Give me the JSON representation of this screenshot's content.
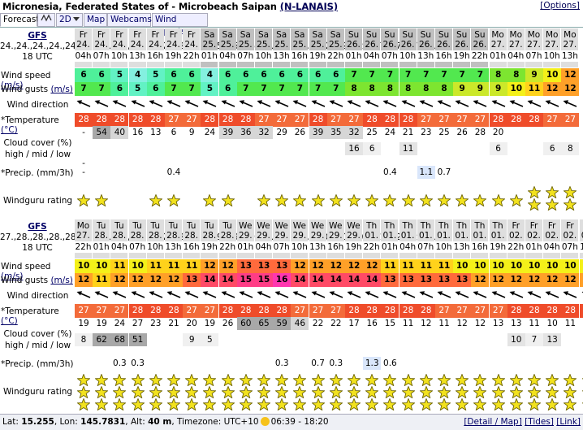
{
  "header": {
    "title": "Micronesia, Federated States of - Microbeach Saipan",
    "code": "(N-LANAIS)",
    "options": "[Options]"
  },
  "tabs": [
    "Forecast",
    "2D",
    "Map",
    "Webcams",
    "Wind reports"
  ],
  "blocks": [
    {
      "model": "GFS",
      "date": [
        "24.",
        "24.",
        "24.",
        "24.",
        "24.",
        "24.",
        "24.",
        "25.",
        "25.",
        "25.",
        "25.",
        "25.",
        "25.",
        "25.",
        "25.",
        "26.",
        "26.",
        "26.",
        "26.",
        "26.",
        "26.",
        "26.",
        "26.",
        "27.",
        "27.",
        "27.",
        "27.",
        "27."
      ],
      "utc": "18 UTC",
      "day": [
        "Fr",
        "Fr",
        "Fr",
        "Fr",
        "Fr",
        "Fr",
        "Fr",
        "Sa",
        "Sa",
        "Sa",
        "Sa",
        "Sa",
        "Sa",
        "Sa",
        "Sa",
        "Su",
        "Su",
        "Su",
        "Su",
        "Su",
        "Su",
        "Su",
        "Su",
        "Mo",
        "Mo",
        "Mo",
        "Mo",
        "Mo"
      ],
      "hour": [
        "04h",
        "07h",
        "10h",
        "13h",
        "16h",
        "19h",
        "22h",
        "01h",
        "04h",
        "07h",
        "10h",
        "13h",
        "16h",
        "19h",
        "22h",
        "01h",
        "04h",
        "07h",
        "10h",
        "13h",
        "16h",
        "19h",
        "22h",
        "01h",
        "04h",
        "07h",
        "10h",
        "13h"
      ],
      "wind": [
        6,
        6,
        5,
        4,
        5,
        6,
        6,
        4,
        6,
        6,
        6,
        6,
        6,
        6,
        6,
        7,
        7,
        7,
        7,
        7,
        7,
        7,
        7,
        8,
        8,
        9,
        10,
        12
      ],
      "gusts": [
        7,
        7,
        6,
        5,
        6,
        7,
        7,
        5,
        6,
        7,
        7,
        7,
        7,
        7,
        7,
        8,
        8,
        8,
        8,
        8,
        8,
        9,
        9,
        9,
        10,
        11,
        12,
        12
      ],
      "temp": [
        28,
        28,
        28,
        28,
        28,
        27,
        27,
        28,
        28,
        28,
        27,
        27,
        27,
        28,
        27,
        27,
        28,
        28,
        28,
        27,
        27,
        27,
        27,
        28,
        28,
        28,
        27,
        27
      ],
      "cloud_high": [
        "-",
        "54",
        "40",
        "16",
        "13",
        "6",
        "9",
        "24",
        "39",
        "36",
        "32",
        "29",
        "26",
        "39",
        "35",
        "32",
        "25",
        "24",
        "21",
        "23",
        "25",
        "26",
        "28",
        "20",
        "",
        "",
        "",
        ""
      ],
      "cloud_mid": [
        "",
        "",
        "",
        "",
        "",
        "",
        "",
        "",
        "",
        "",
        "",
        "",
        "",
        "",
        "",
        "16",
        "6",
        "",
        "11",
        "",
        "",
        "",
        "",
        "6",
        "",
        "",
        "6",
        "8"
      ],
      "cloud_low": [
        "-",
        "",
        "",
        "",
        "",
        "",
        "",
        "",
        "",
        "",
        "",
        "",
        "",
        "",
        "",
        "",
        "",
        "",
        "",
        "",
        "",
        "",
        "",
        "",
        "",
        "",
        "",
        ""
      ],
      "precip": [
        "-",
        "",
        "",
        "",
        "",
        "0.4",
        "",
        "",
        "",
        "",
        "",
        "",
        "",
        "",
        "",
        "",
        "",
        "0.4",
        "",
        "1.1",
        "0.7",
        "",
        "",
        "",
        "",
        "",
        "",
        ""
      ],
      "stars": [
        1,
        1,
        0,
        0,
        1,
        1,
        0,
        1,
        1,
        0,
        1,
        1,
        1,
        1,
        1,
        1,
        1,
        1,
        1,
        1,
        1,
        1,
        1,
        1,
        1,
        2,
        2,
        2
      ]
    },
    {
      "model": "GFS",
      "date": [
        "27.",
        "28.",
        "28.",
        "28.",
        "28.",
        "28.",
        "28.",
        "28.",
        "28.",
        "29.",
        "29.",
        "29.",
        "29.",
        "29.",
        "29.",
        "29.",
        "01.",
        "01.",
        "01.",
        "01.",
        "01.",
        "01.",
        "01.",
        "01.",
        "02.",
        "02.",
        "02.",
        "02.",
        "02."
      ],
      "utc": "18 UTC",
      "day": [
        "Mo",
        "Tu",
        "Tu",
        "Tu",
        "Tu",
        "Tu",
        "Tu",
        "Tu",
        "Tu",
        "We",
        "We",
        "We",
        "We",
        "We",
        "We",
        "We",
        "Th",
        "Th",
        "Th",
        "Th",
        "Th",
        "Th",
        "Th",
        "Th",
        "Fr",
        "Fr",
        "Fr",
        "Fr",
        "Fr"
      ],
      "hour": [
        "22h",
        "01h",
        "04h",
        "07h",
        "10h",
        "13h",
        "16h",
        "19h",
        "22h",
        "01h",
        "04h",
        "07h",
        "10h",
        "13h",
        "16h",
        "19h",
        "22h",
        "01h",
        "04h",
        "07h",
        "10h",
        "13h",
        "16h",
        "19h",
        "22h",
        "01h",
        "04h",
        "07h",
        "10h"
      ],
      "wind": [
        10,
        10,
        11,
        10,
        11,
        11,
        11,
        12,
        12,
        13,
        13,
        13,
        12,
        12,
        12,
        12,
        12,
        11,
        11,
        11,
        11,
        10,
        10,
        10,
        10,
        10,
        10,
        10,
        10
      ],
      "gusts": [
        12,
        11,
        12,
        12,
        12,
        12,
        13,
        14,
        14,
        15,
        15,
        16,
        14,
        14,
        14,
        14,
        14,
        13,
        13,
        13,
        13,
        13,
        12,
        12,
        12,
        12,
        12,
        12,
        12
      ],
      "temp": [
        27,
        27,
        27,
        28,
        28,
        28,
        27,
        27,
        28,
        28,
        28,
        28,
        27,
        27,
        27,
        28,
        28,
        28,
        28,
        28,
        27,
        27,
        27,
        27,
        28,
        28,
        28,
        28,
        28
      ],
      "cloud_high": [
        "19",
        "19",
        "24",
        "27",
        "23",
        "21",
        "20",
        "19",
        "26",
        "60",
        "65",
        "59",
        "46",
        "22",
        "22",
        "17",
        "16",
        "15",
        "11",
        "12",
        "11",
        "12",
        "12",
        "13",
        "13",
        "11",
        "10",
        "11",
        "13"
      ],
      "cloud_mid": [
        "8",
        "62",
        "68",
        "51",
        "",
        "",
        "9",
        "5",
        "",
        "",
        "",
        "",
        "",
        "",
        "",
        "",
        "",
        "",
        "",
        "",
        "",
        "",
        "",
        "",
        "10",
        "7",
        "13",
        "",
        ""
      ],
      "cloud_low": [
        "",
        "",
        "",
        "",
        "",
        "",
        "",
        "",
        "",
        "",
        "",
        "",
        "",
        "",
        "",
        "",
        "",
        "",
        "",
        "",
        "",
        "",
        "",
        "",
        "",
        "",
        "",
        "",
        ""
      ],
      "precip": [
        "",
        "",
        "0.3",
        "0.3",
        "",
        "",
        "",
        "",
        "",
        "",
        "",
        "0.3",
        "",
        "0.7",
        "0.3",
        "",
        "1.3",
        "0.6",
        "",
        "",
        "",
        "",
        "",
        "",
        "",
        "",
        "",
        "",
        ""
      ],
      "stars": [
        3,
        3,
        3,
        3,
        3,
        3,
        3,
        3,
        3,
        3,
        3,
        3,
        3,
        3,
        3,
        3,
        3,
        3,
        3,
        3,
        3,
        3,
        3,
        3,
        3,
        3,
        3,
        3,
        3
      ]
    }
  ],
  "labels": {
    "wind_speed": "Wind speed",
    "gusts": "Wind gusts",
    "ms": "(m/s)",
    "dir": "Wind direction",
    "temp": "*Temperature",
    "degc": "(°C)",
    "cloud1": "Cloud cover (%)",
    "cloud2": "high / mid / low",
    "precip": "*Precip. (mm/3h)",
    "rating": "Windguru rating"
  },
  "footer": {
    "lat_label": "Lat:",
    "lat": "15.255",
    "lon_label": "Lon:",
    "lon": "145.7831",
    "alt_label": "Alt:",
    "alt": "40 m",
    "tz": "Timezone: UTC+10",
    "sun": "06:39 - 18:20",
    "links": [
      "[Detail / Map]",
      "[Tides]",
      "[Link]"
    ]
  },
  "colors": {
    "weekend": "#c0c0c0",
    "weekday": "#dedede",
    "hot": "#ff5533"
  }
}
